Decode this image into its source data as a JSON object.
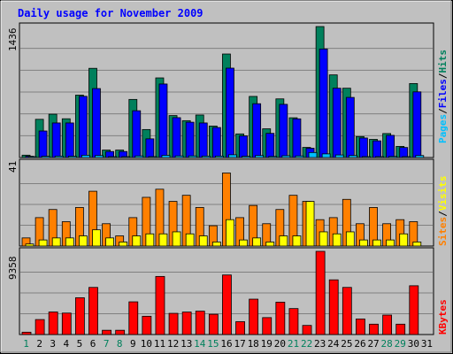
{
  "chart_data": {
    "type": "bar",
    "title": "Daily usage for November 2009",
    "days": [
      "1",
      "2",
      "3",
      "4",
      "5",
      "6",
      "7",
      "8",
      "9",
      "10",
      "11",
      "12",
      "13",
      "14",
      "15",
      "16",
      "17",
      "18",
      "19",
      "20",
      "21",
      "22",
      "23",
      "24",
      "25",
      "26",
      "27",
      "28",
      "29",
      "30",
      "31"
    ],
    "weekend_days": [
      "1",
      "7",
      "8",
      "14",
      "15",
      "21",
      "22",
      "28",
      "29"
    ],
    "panels": [
      {
        "id": "hits",
        "ymax_label": "1436",
        "ymax": 1436,
        "legend": [
          {
            "label": "Pages",
            "color": "#00c0ff"
          },
          {
            "label": "/",
            "color": "#000000"
          },
          {
            "label": "Files",
            "color": "#0000ff"
          },
          {
            "label": "/",
            "color": "#000000"
          },
          {
            "label": "Hits",
            "color": "#00805c"
          }
        ],
        "series": [
          {
            "color": "#00805c",
            "values": [
              26,
              419,
              475,
              425,
              684,
              978,
              82,
              82,
              637,
              307,
              873,
              460,
              404,
              466,
              345,
              1135,
              259,
              670,
              315,
              643,
              436,
              111,
              1436,
              906,
              760,
              230,
              199,
              263,
              122,
              811,
              0
            ]
          },
          {
            "color": "#0000ff",
            "values": [
              14,
              291,
              379,
              379,
              671,
              756,
              66,
              66,
              513,
              205,
              806,
              437,
              387,
              379,
              329,
              980,
              237,
              590,
              265,
              583,
              424,
              102,
              1190,
              760,
              659,
              214,
              183,
              243,
              110,
              720,
              0
            ]
          },
          {
            "color": "#00c0ff",
            "values": [
              4,
              14,
              16,
              14,
              25,
              22,
              4,
              4,
              18,
              10,
              24,
              18,
              18,
              16,
              16,
              30,
              14,
              22,
              12,
              20,
              18,
              55,
              40,
              28,
              22,
              10,
              10,
              12,
              6,
              22,
              0
            ]
          }
        ]
      },
      {
        "id": "visits",
        "ymax_label": "41",
        "ymax": 41,
        "legend": [
          {
            "label": "Sites",
            "color": "#ff8000"
          },
          {
            "label": "/",
            "color": "#000000"
          },
          {
            "label": "Visits",
            "color": "#ffff00"
          }
        ],
        "series": [
          {
            "color": "#ff8000",
            "values": [
              4,
              14,
              18,
              12,
              19,
              27,
              11,
              5,
              14,
              24,
              28,
              22,
              25,
              19,
              10,
              36,
              14,
              20,
              11,
              18,
              25,
              22,
              13,
              14,
              23,
              11,
              19,
              11,
              13,
              12,
              0
            ]
          },
          {
            "color": "#ffff00",
            "values": [
              1,
              3,
              4,
              4,
              5,
              8,
              4,
              2,
              5,
              6,
              6,
              7,
              6,
              5,
              2,
              13,
              3,
              4,
              2,
              5,
              5,
              22,
              7,
              6,
              7,
              3,
              3,
              3,
              6,
              2,
              0
            ]
          }
        ]
      },
      {
        "id": "kbytes",
        "ymax_label": "9358",
        "ymax": 9358,
        "legend": [
          {
            "label": "KBytes",
            "color": "#ff0000"
          }
        ],
        "series": [
          {
            "color": "#ff0000",
            "values": [
              264,
              1686,
              2535,
              2413,
              4137,
              5301,
              481,
              481,
              3678,
              2056,
              6534,
              2384,
              2529,
              2631,
              2279,
              6699,
              1446,
              3979,
              1904,
              3640,
              2921,
              1025,
              9358,
              6153,
              5301,
              1747,
              1165,
              2189,
              1165,
              5487,
              0
            ]
          }
        ]
      }
    ]
  }
}
